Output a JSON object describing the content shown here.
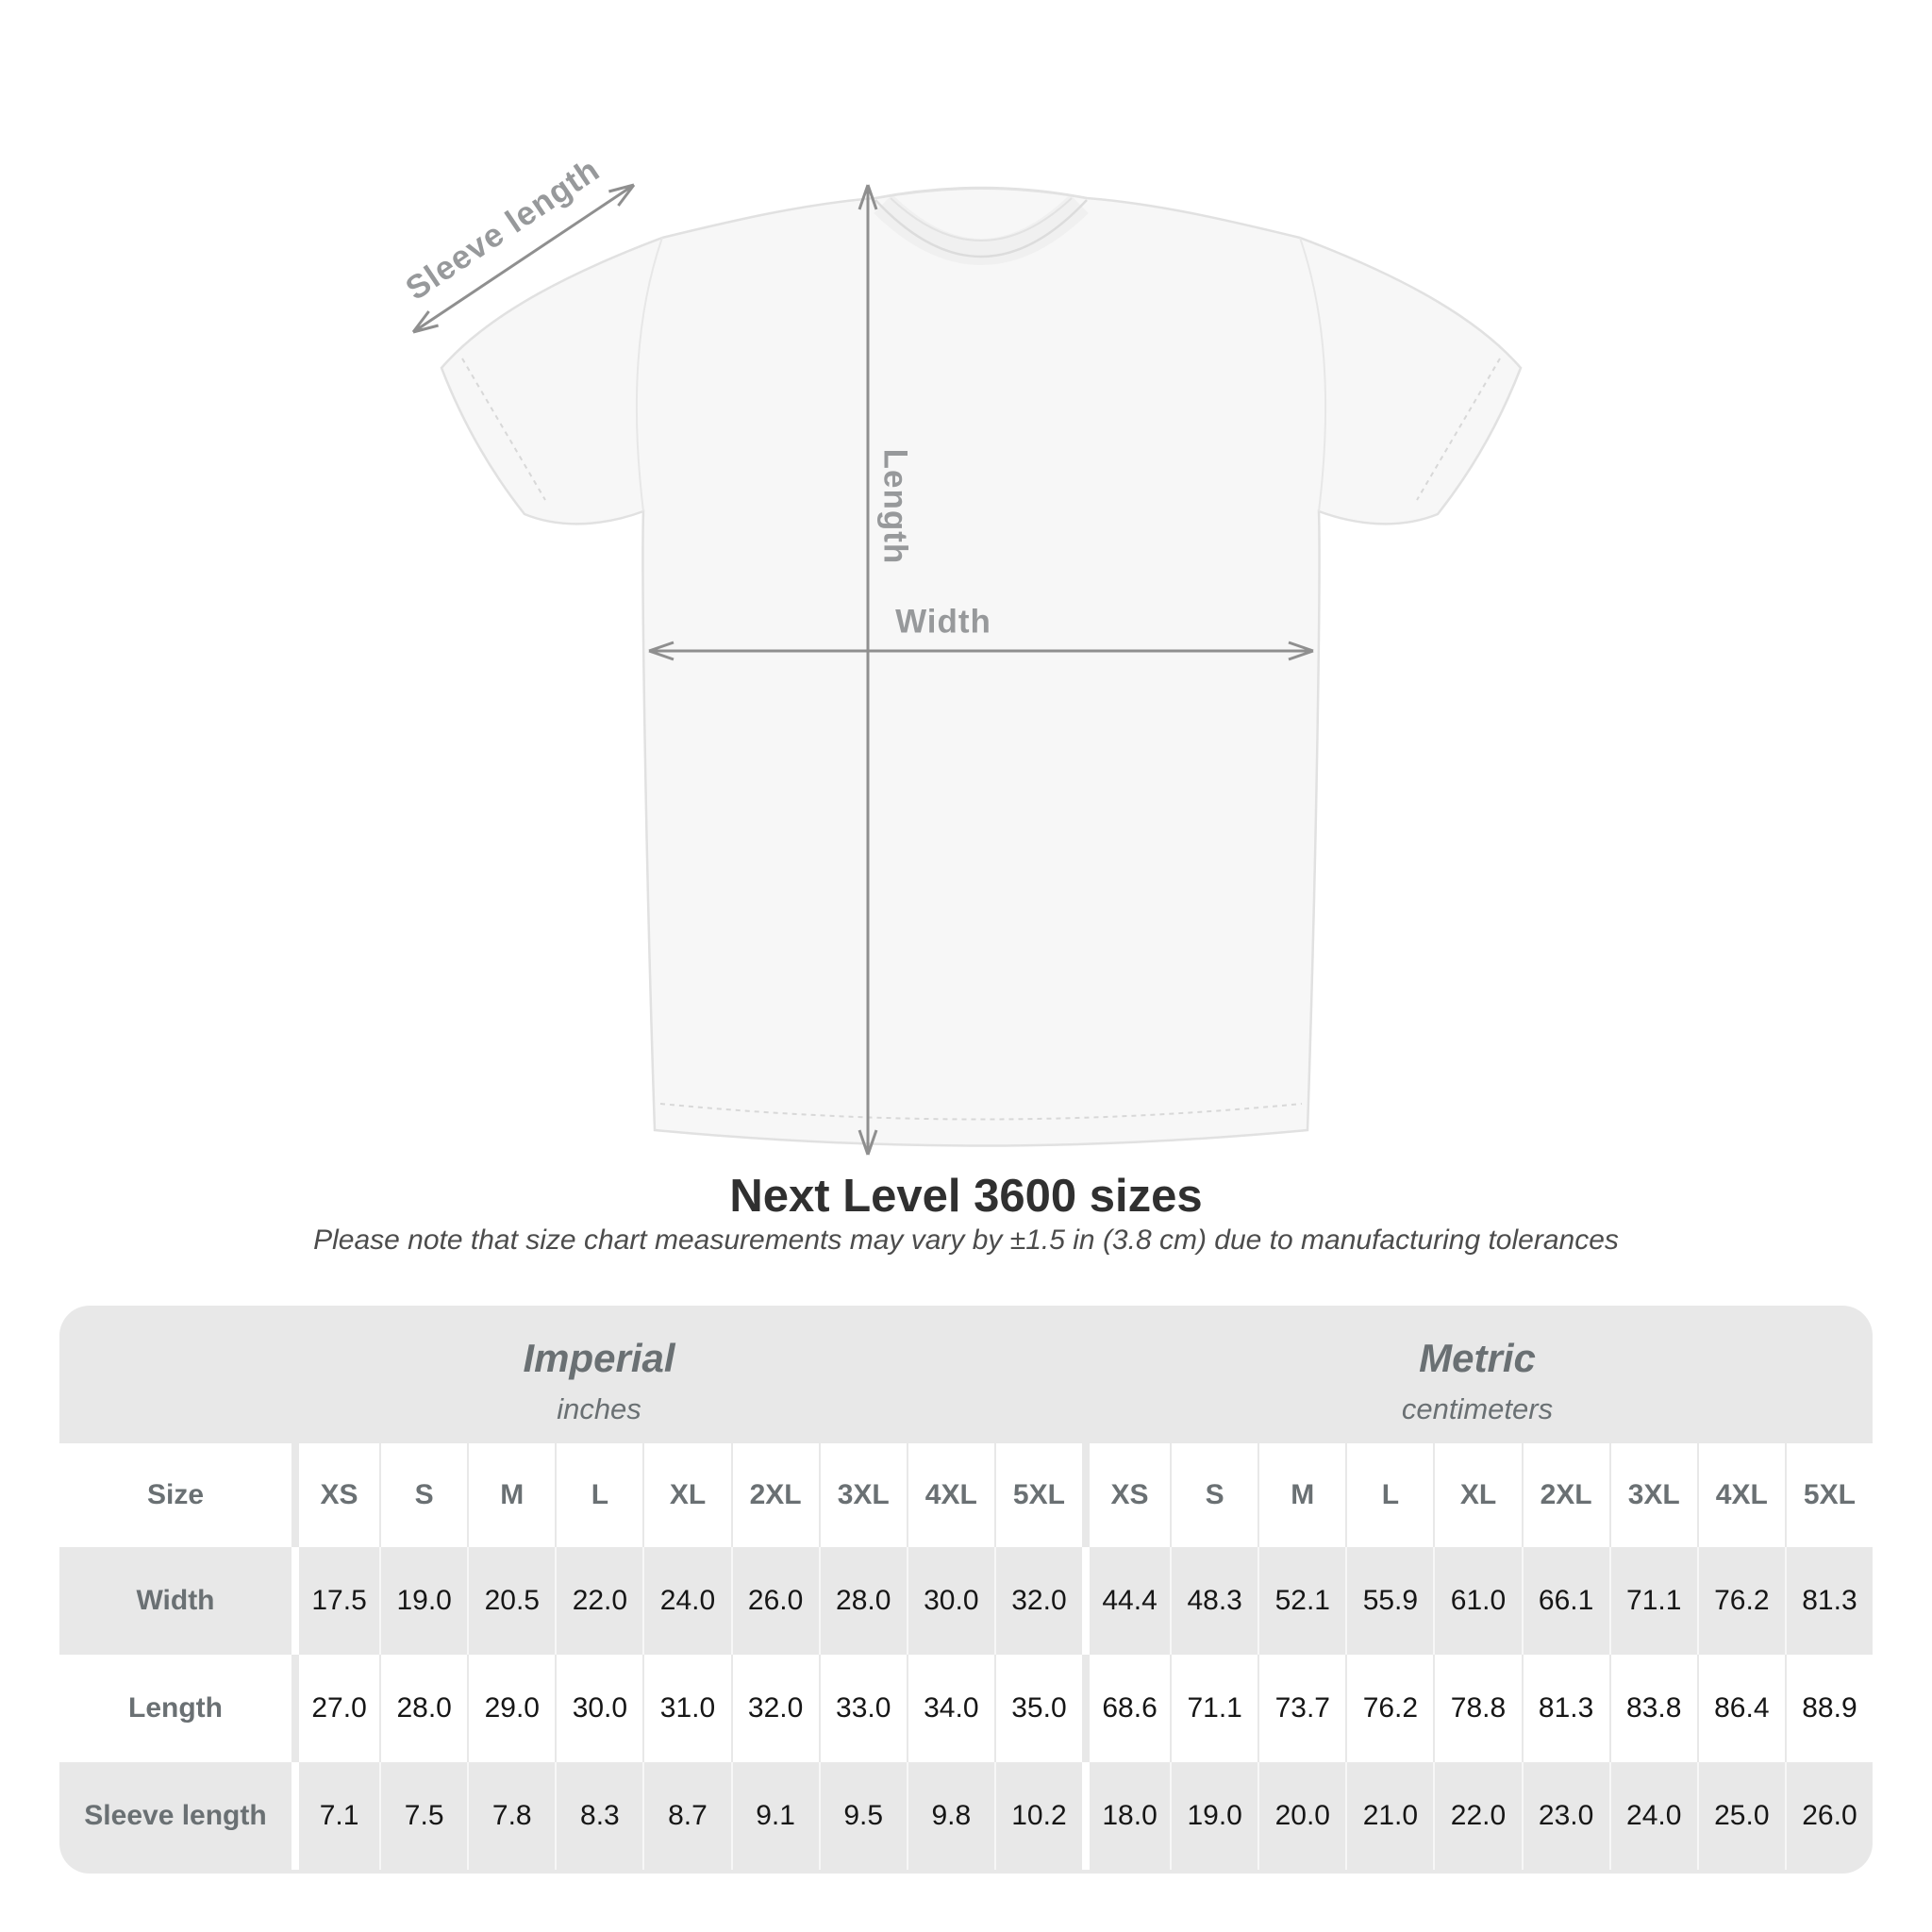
{
  "title": "Next Level 3600 sizes",
  "subtitle": "Please note that size chart measurements may vary by ±1.5 in (3.8 cm) due to manufacturing tolerances",
  "diagram": {
    "labels": {
      "sleeve": "Sleeve length",
      "length": "Length",
      "width": "Width"
    },
    "annotation_color": "#8f8f8f",
    "shirt_color": "#f7f7f7"
  },
  "table": {
    "size_col_header": "Size",
    "sizes": [
      "XS",
      "S",
      "M",
      "L",
      "XL",
      "2XL",
      "3XL",
      "4XL",
      "5XL"
    ],
    "groups": [
      {
        "name": "Imperial",
        "unit": "inches"
      },
      {
        "name": "Metric",
        "unit": "centimeters"
      }
    ],
    "rows": [
      {
        "label": "Width",
        "imperial": [
          "17.5",
          "19.0",
          "20.5",
          "22.0",
          "24.0",
          "26.0",
          "28.0",
          "30.0",
          "32.0"
        ],
        "metric": [
          "44.4",
          "48.3",
          "52.1",
          "55.9",
          "61.0",
          "66.1",
          "71.1",
          "76.2",
          "81.3"
        ]
      },
      {
        "label": "Length",
        "imperial": [
          "27.0",
          "28.0",
          "29.0",
          "30.0",
          "31.0",
          "32.0",
          "33.0",
          "34.0",
          "35.0"
        ],
        "metric": [
          "68.6",
          "71.1",
          "73.7",
          "76.2",
          "78.8",
          "81.3",
          "83.8",
          "86.4",
          "88.9"
        ]
      },
      {
        "label": "Sleeve length",
        "imperial": [
          "7.1",
          "7.5",
          "7.8",
          "8.3",
          "8.7",
          "9.1",
          "9.5",
          "9.8",
          "10.2"
        ],
        "metric": [
          "18.0",
          "19.0",
          "20.0",
          "21.0",
          "22.0",
          "23.0",
          "24.0",
          "25.0",
          "26.0"
        ]
      }
    ],
    "colors": {
      "card_bg": "#e8e8e8",
      "header_text": "#6a7073",
      "value_text": "#161616"
    }
  },
  "chart_data": {
    "type": "table",
    "title": "Next Level 3600 sizes",
    "note": "Please note that size chart measurements may vary by ±1.5 in (3.8 cm) due to manufacturing tolerances",
    "column_groups": [
      {
        "name": "Imperial",
        "unit": "inches",
        "columns": [
          "XS",
          "S",
          "M",
          "L",
          "XL",
          "2XL",
          "3XL",
          "4XL",
          "5XL"
        ]
      },
      {
        "name": "Metric",
        "unit": "centimeters",
        "columns": [
          "XS",
          "S",
          "M",
          "L",
          "XL",
          "2XL",
          "3XL",
          "4XL",
          "5XL"
        ]
      }
    ],
    "rows": [
      {
        "measurement": "Width",
        "imperial_in": [
          17.5,
          19.0,
          20.5,
          22.0,
          24.0,
          26.0,
          28.0,
          30.0,
          32.0
        ],
        "metric_cm": [
          44.4,
          48.3,
          52.1,
          55.9,
          61.0,
          66.1,
          71.1,
          76.2,
          81.3
        ]
      },
      {
        "measurement": "Length",
        "imperial_in": [
          27.0,
          28.0,
          29.0,
          30.0,
          31.0,
          32.0,
          33.0,
          34.0,
          35.0
        ],
        "metric_cm": [
          68.6,
          71.1,
          73.7,
          76.2,
          78.8,
          81.3,
          83.8,
          86.4,
          88.9
        ]
      },
      {
        "measurement": "Sleeve length",
        "imperial_in": [
          7.1,
          7.5,
          7.8,
          8.3,
          8.7,
          9.1,
          9.5,
          9.8,
          10.2
        ],
        "metric_cm": [
          18.0,
          19.0,
          20.0,
          21.0,
          22.0,
          23.0,
          24.0,
          25.0,
          26.0
        ]
      }
    ]
  }
}
